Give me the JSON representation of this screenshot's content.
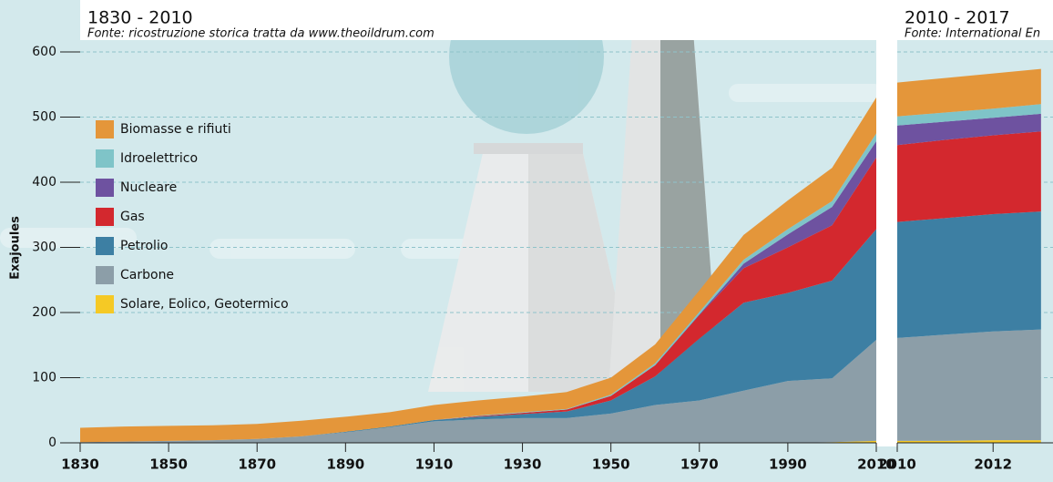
{
  "chart_data": [
    {
      "type": "area",
      "stacked": true,
      "title": "1830 - 2010",
      "subtitle": "Fonte: ricostruzione storica tratta da www.theoildrum.com",
      "y_label": "Exajoules",
      "x": [
        1830,
        1840,
        1850,
        1860,
        1870,
        1880,
        1890,
        1900,
        1910,
        1920,
        1930,
        1940,
        1950,
        1960,
        1970,
        1980,
        1990,
        2000,
        2010
      ],
      "series": [
        {
          "name": "Biomasse e rifiuti",
          "color": "#e4963a",
          "values": [
            22,
            23,
            23,
            23,
            23,
            24,
            23,
            22,
            23,
            23,
            24,
            26,
            26,
            29,
            33,
            38,
            44,
            51,
            55
          ]
        },
        {
          "name": "Idroelettrico",
          "color": "#7fc4c8",
          "values": [
            0,
            0,
            0,
            0,
            0,
            0,
            0,
            0,
            0,
            1,
            1,
            1,
            2,
            3,
            4,
            6,
            8,
            9,
            12
          ]
        },
        {
          "name": "Nucleare",
          "color": "#6e52a0",
          "values": [
            0,
            0,
            0,
            0,
            0,
            0,
            0,
            0,
            0,
            0,
            0,
            0,
            0,
            0,
            1,
            7,
            20,
            28,
            25
          ]
        },
        {
          "name": "Gas",
          "color": "#d3282e",
          "values": [
            0,
            0,
            0,
            0,
            0,
            0,
            0,
            0,
            0,
            1,
            2,
            3,
            7,
            17,
            36,
            53,
            70,
            85,
            110
          ]
        },
        {
          "name": "Petrolio",
          "color": "#3d7fa3",
          "values": [
            0,
            0,
            0,
            0,
            0,
            0,
            1,
            1,
            2,
            4,
            6,
            10,
            20,
            44,
            95,
            135,
            135,
            150,
            170
          ]
        },
        {
          "name": "Carbone",
          "color": "#8c9ea8",
          "values": [
            1,
            2,
            3,
            4,
            6,
            10,
            16,
            24,
            33,
            36,
            38,
            38,
            45,
            58,
            65,
            80,
            95,
            98,
            155
          ]
        },
        {
          "name": "Solare, Eolico, Geotermico",
          "color": "#f5c925",
          "values": [
            0,
            0,
            0,
            0,
            0,
            0,
            0,
            0,
            0,
            0,
            0,
            0,
            0,
            0,
            0,
            0,
            0,
            1,
            3
          ]
        }
      ],
      "xlim": [
        1830,
        2010
      ],
      "xticks": [
        1830,
        1850,
        1870,
        1890,
        1910,
        1930,
        1950,
        1970,
        1990,
        2010
      ],
      "ylim": [
        0,
        600
      ],
      "yticks": [
        0,
        100,
        200,
        300,
        400,
        500,
        600
      ],
      "grid": true
    },
    {
      "type": "area",
      "stacked": true,
      "title": "2010 - 2017",
      "subtitle": "Fonte: International En",
      "x": [
        2010,
        2011,
        2012,
        2013
      ],
      "series": [
        {
          "color": "#e4963a",
          "values": [
            52,
            53,
            54,
            54
          ]
        },
        {
          "color": "#7fc4c8",
          "values": [
            14,
            14,
            14,
            15
          ]
        },
        {
          "color": "#6e52a0",
          "values": [
            30,
            28,
            27,
            27
          ]
        },
        {
          "color": "#d3282e",
          "values": [
            118,
            120,
            121,
            123
          ]
        },
        {
          "color": "#3d7fa3",
          "values": [
            178,
            179,
            180,
            181
          ]
        },
        {
          "color": "#8c9ea8",
          "values": [
            158,
            163,
            167,
            170
          ]
        },
        {
          "color": "#f5c925",
          "values": [
            3,
            3,
            4,
            4
          ]
        }
      ],
      "xlim": [
        2010,
        2013.25
      ],
      "xticks": [
        2010,
        2012
      ],
      "ylim": [
        0,
        600
      ],
      "grid": true
    }
  ]
}
